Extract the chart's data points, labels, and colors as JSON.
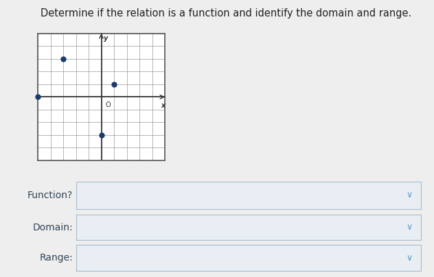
{
  "title": "Determine if the relation is a function and identify the domain and range.",
  "title_fontsize": 10.5,
  "title_color": "#222222",
  "graph_xlim": [
    -5,
    5
  ],
  "graph_ylim": [
    -5,
    5
  ],
  "grid_color": "#999999",
  "axis_color": "#333333",
  "points": [
    [
      -3,
      3
    ],
    [
      1,
      1
    ],
    [
      -5,
      0
    ],
    [
      0,
      -3
    ]
  ],
  "point_color": "#1a3a6b",
  "point_size": 25,
  "origin_label": "O",
  "x_label": "x",
  "y_label": "y",
  "background_color": "#eeeeee",
  "graph_bg": "#ffffff",
  "graph_border_color": "#555555",
  "dropdown_labels": [
    "Function?",
    "Domain:",
    "Range:"
  ],
  "dropdown_border_color": "#aabbcc",
  "dropdown_bg": "#e8eef3",
  "chevron_color": "#5599bb",
  "label_fontsize": 10,
  "label_color": "#334455"
}
